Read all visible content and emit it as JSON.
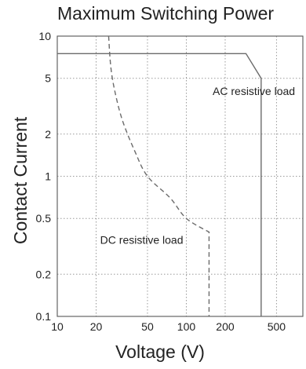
{
  "chart_data": {
    "type": "line",
    "title": "Maximum Switching Power",
    "xlabel": "Voltage (V)",
    "ylabel": "Contact Current",
    "x_scale": "log",
    "y_scale": "log",
    "xlim": [
      10,
      800
    ],
    "ylim": [
      0.1,
      10
    ],
    "x_ticks": [
      {
        "value": 10,
        "label": "10"
      },
      {
        "value": 20,
        "label": "20"
      },
      {
        "value": 50,
        "label": "50"
      },
      {
        "value": 100,
        "label": "100"
      },
      {
        "value": 200,
        "label": "200"
      },
      {
        "value": 500,
        "label": "500"
      }
    ],
    "y_ticks": [
      {
        "value": 0.1,
        "label": "0.1"
      },
      {
        "value": 0.2,
        "label": "0.2"
      },
      {
        "value": 0.5,
        "label": "0.5"
      },
      {
        "value": 1,
        "label": "1"
      },
      {
        "value": 2,
        "label": "2"
      },
      {
        "value": 5,
        "label": "5"
      },
      {
        "value": 10,
        "label": "10"
      }
    ],
    "grid": "dotted",
    "series": [
      {
        "name": "AC resistive load",
        "style": "solid",
        "points": [
          {
            "x": 10,
            "y": 7.5
          },
          {
            "x": 290,
            "y": 7.5
          },
          {
            "x": 380,
            "y": 5
          },
          {
            "x": 380,
            "y": 0.1
          }
        ]
      },
      {
        "name": "DC resistive load",
        "style": "dashed",
        "points": [
          {
            "x": 25,
            "y": 10
          },
          {
            "x": 26,
            "y": 6
          },
          {
            "x": 28,
            "y": 4
          },
          {
            "x": 32,
            "y": 2.5
          },
          {
            "x": 40,
            "y": 1.5
          },
          {
            "x": 50,
            "y": 1
          },
          {
            "x": 75,
            "y": 0.7
          },
          {
            "x": 100,
            "y": 0.5
          },
          {
            "x": 150,
            "y": 0.4
          },
          {
            "x": 150,
            "y": 0.1
          }
        ]
      }
    ],
    "annotations": [
      {
        "text": "AC resistive load",
        "x": 160,
        "y": 3.8
      },
      {
        "text": "DC resistive load",
        "x": 21.5,
        "y": 0.33
      }
    ],
    "colors": {
      "line": "#6b6b6b",
      "grid": "#9a9a9a",
      "frame": "#555555",
      "text": "#222222"
    }
  }
}
